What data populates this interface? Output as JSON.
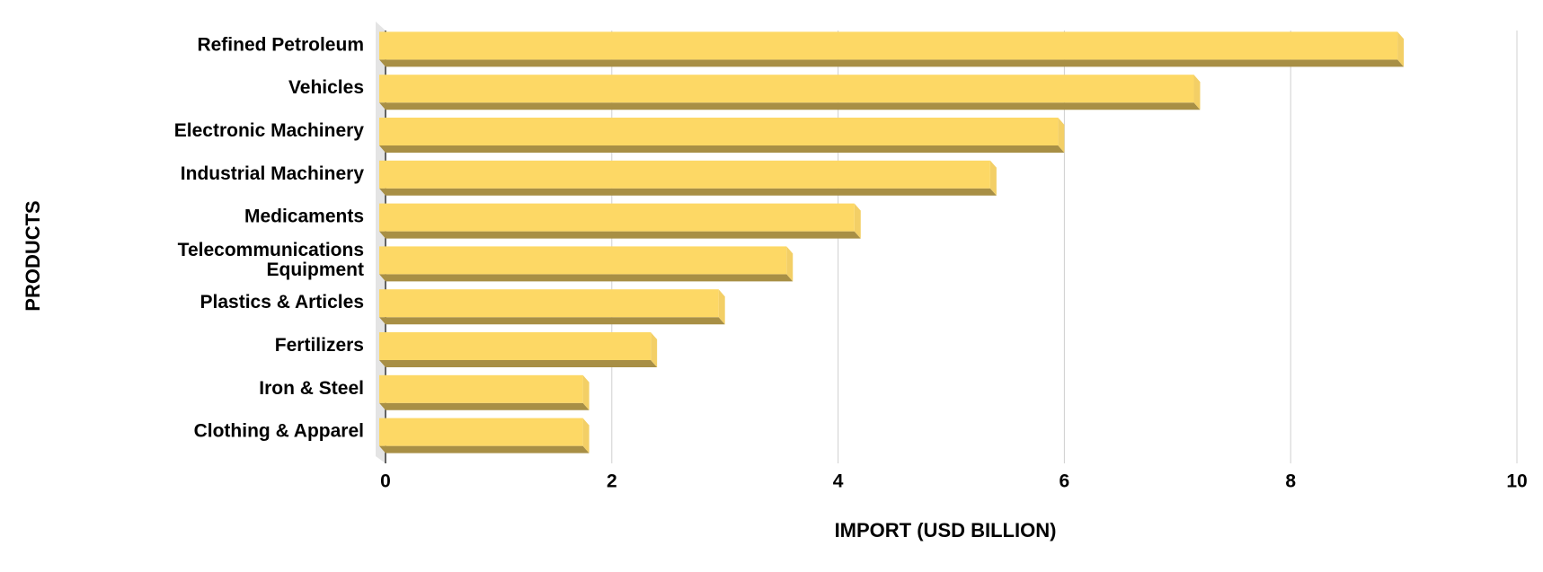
{
  "chart_data": {
    "type": "bar3d_horizontal",
    "x_label": "IMPORT (USD BILLION)",
    "y_label": "PRODUCTS",
    "categories": [
      "Refined Petroleum",
      "Vehicles",
      "Electronic Machinery",
      "Industrial Machinery",
      "Medicaments",
      "Telecommunications Equipment",
      "Plastics & Articles",
      "Fertilizers",
      "Iron & Steel",
      "Clothing & Apparel"
    ],
    "values": [
      9.0,
      7.2,
      6.0,
      5.4,
      4.2,
      3.6,
      3.0,
      2.4,
      1.8,
      1.8
    ],
    "color": "#fdd865",
    "xlim": [
      0,
      10
    ],
    "xticks": [
      0,
      2,
      4,
      6,
      8,
      10
    ],
    "grid": true
  }
}
